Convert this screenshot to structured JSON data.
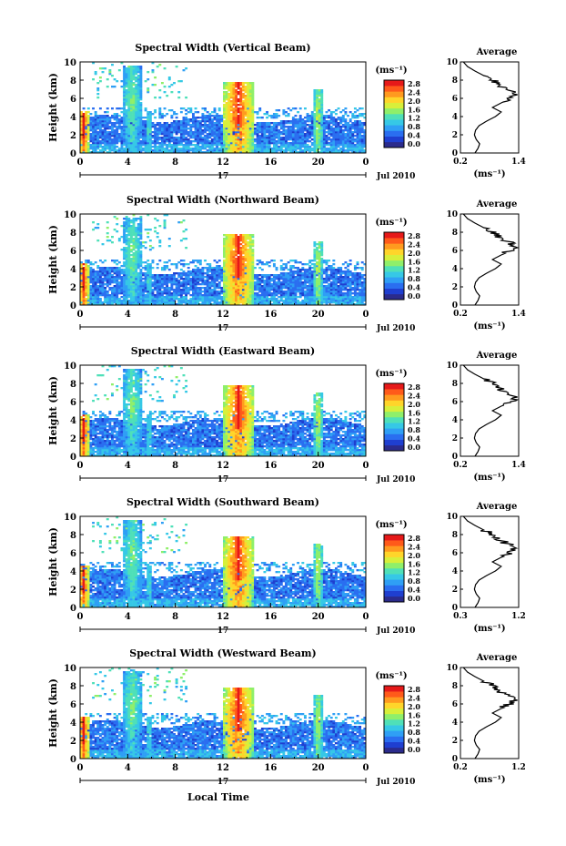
{
  "figure": {
    "xlabel": "Local Time",
    "ylabel": "Height (km)",
    "date_label": "Jul 2010",
    "day_label": "17",
    "colorbar_unit": "(ms⁻¹)",
    "average_title": "Average",
    "average_unit": "(ms⁻¹)"
  },
  "chart_data": [
    {
      "type": "heatmap",
      "title": "Spectral Width (Vertical Beam)",
      "xlabel": "Local Time",
      "ylabel": "Height (km)",
      "x_ticks": [
        "0",
        "4",
        "8",
        "12",
        "16",
        "20",
        "0"
      ],
      "y_ticks": [
        "0",
        "2",
        "4",
        "6",
        "8",
        "10"
      ],
      "xlim": [
        0,
        24
      ],
      "ylim": [
        0,
        10
      ],
      "colorbar": {
        "unit": "(ms⁻¹)",
        "ticks": [
          "0.0",
          "0.4",
          "0.8",
          "1.2",
          "1.6",
          "2.0",
          "2.4",
          "2.8"
        ],
        "range": [
          0,
          2.8
        ]
      },
      "profile": {
        "title": "Average",
        "xlabel": "(ms⁻¹)",
        "x_ticks": [
          "0.2",
          "1.4"
        ],
        "xlim": [
          0.2,
          1.4
        ],
        "y_ticks": [
          "0",
          "2",
          "4",
          "6",
          "8",
          "10"
        ]
      },
      "date_label": "Jul 2010",
      "day_label": "17"
    },
    {
      "type": "heatmap",
      "title": "Spectral Width (Northward Beam)",
      "xlabel": "Local Time",
      "ylabel": "Height (km)",
      "x_ticks": [
        "0",
        "4",
        "8",
        "12",
        "16",
        "20",
        "0"
      ],
      "y_ticks": [
        "0",
        "2",
        "4",
        "6",
        "8",
        "10"
      ],
      "xlim": [
        0,
        24
      ],
      "ylim": [
        0,
        10
      ],
      "colorbar": {
        "unit": "(ms⁻¹)",
        "ticks": [
          "0.0",
          "0.4",
          "0.8",
          "1.2",
          "1.6",
          "2.0",
          "2.4",
          "2.8"
        ],
        "range": [
          0,
          2.8
        ]
      },
      "profile": {
        "title": "Average",
        "xlabel": "(ms⁻¹)",
        "x_ticks": [
          "0.2",
          "1.4"
        ],
        "xlim": [
          0.2,
          1.4
        ],
        "y_ticks": [
          "0",
          "2",
          "4",
          "6",
          "8",
          "10"
        ]
      },
      "date_label": "Jul 2010",
      "day_label": "17"
    },
    {
      "type": "heatmap",
      "title": "Spectral Width (Eastward Beam)",
      "xlabel": "Local Time",
      "ylabel": "Height (km)",
      "x_ticks": [
        "0",
        "4",
        "8",
        "12",
        "16",
        "20",
        "0"
      ],
      "y_ticks": [
        "0",
        "2",
        "4",
        "6",
        "8",
        "10"
      ],
      "xlim": [
        0,
        24
      ],
      "ylim": [
        0,
        10
      ],
      "colorbar": {
        "unit": "(ms⁻¹)",
        "ticks": [
          "0.0",
          "0.4",
          "0.8",
          "1.2",
          "1.6",
          "2.0",
          "2.4",
          "2.8"
        ],
        "range": [
          0,
          2.8
        ]
      },
      "profile": {
        "title": "Average",
        "xlabel": "(ms⁻¹)",
        "x_ticks": [
          "0.2",
          "1.4"
        ],
        "xlim": [
          0.2,
          1.4
        ],
        "y_ticks": [
          "0",
          "2",
          "4",
          "6",
          "8",
          "10"
        ]
      },
      "date_label": "Jul 2010",
      "day_label": "17"
    },
    {
      "type": "heatmap",
      "title": "Spectral Width (Southward Beam)",
      "xlabel": "Local Time",
      "ylabel": "Height (km)",
      "x_ticks": [
        "0",
        "4",
        "8",
        "12",
        "16",
        "20",
        "0"
      ],
      "y_ticks": [
        "0",
        "2",
        "4",
        "6",
        "8",
        "10"
      ],
      "xlim": [
        0,
        24
      ],
      "ylim": [
        0,
        10
      ],
      "colorbar": {
        "unit": "(ms⁻¹)",
        "ticks": [
          "0.0",
          "0.4",
          "0.8",
          "1.2",
          "1.6",
          "2.0",
          "2.4",
          "2.8"
        ],
        "range": [
          0,
          2.8
        ]
      },
      "profile": {
        "title": "Average",
        "xlabel": "(ms⁻¹)",
        "x_ticks": [
          "0.3",
          "1.2"
        ],
        "xlim": [
          0.3,
          1.2
        ],
        "y_ticks": [
          "0",
          "2",
          "4",
          "6",
          "8",
          "10"
        ]
      },
      "date_label": "Jul 2010",
      "day_label": "17"
    },
    {
      "type": "heatmap",
      "title": "Spectral Width (Westward Beam)",
      "xlabel": "Local Time",
      "ylabel": "Height (km)",
      "x_ticks": [
        "0",
        "4",
        "8",
        "12",
        "16",
        "20",
        "0"
      ],
      "y_ticks": [
        "0",
        "2",
        "4",
        "6",
        "8",
        "10"
      ],
      "xlim": [
        0,
        24
      ],
      "ylim": [
        0,
        10
      ],
      "colorbar": {
        "unit": "(ms⁻¹)",
        "ticks": [
          "0.0",
          "0.4",
          "0.8",
          "1.2",
          "1.6",
          "2.0",
          "2.4",
          "2.8"
        ],
        "range": [
          0,
          2.8
        ]
      },
      "profile": {
        "title": "Average",
        "xlabel": "(ms⁻¹)",
        "x_ticks": [
          "0.2",
          "1.2"
        ],
        "xlim": [
          0.2,
          1.2
        ],
        "y_ticks": [
          "0",
          "2",
          "4",
          "6",
          "8",
          "10"
        ]
      },
      "date_label": "Jul 2010",
      "day_label": "17"
    }
  ],
  "colormap": [
    "#2b2b8c",
    "#1f3fd0",
    "#2a6ef0",
    "#2f9ff5",
    "#36c8e6",
    "#4fe0b8",
    "#8fef6a",
    "#d8ef3a",
    "#ffd52a",
    "#ff9a1f",
    "#ff5a1a",
    "#e61919"
  ],
  "profile_shape": [
    {
      "h": 0.0,
      "v": 0.25
    },
    {
      "h": 0.5,
      "v": 0.3
    },
    {
      "h": 1.0,
      "v": 0.33
    },
    {
      "h": 1.5,
      "v": 0.27
    },
    {
      "h": 2.0,
      "v": 0.24
    },
    {
      "h": 2.5,
      "v": 0.26
    },
    {
      "h": 3.0,
      "v": 0.32
    },
    {
      "h": 3.5,
      "v": 0.45
    },
    {
      "h": 4.0,
      "v": 0.6
    },
    {
      "h": 4.5,
      "v": 0.7
    },
    {
      "h": 5.0,
      "v": 0.55
    },
    {
      "h": 5.5,
      "v": 0.7
    },
    {
      "h": 6.0,
      "v": 0.85
    },
    {
      "h": 6.5,
      "v": 0.95
    },
    {
      "h": 7.0,
      "v": 0.8
    },
    {
      "h": 7.5,
      "v": 0.65
    },
    {
      "h": 8.0,
      "v": 0.55
    },
    {
      "h": 8.5,
      "v": 0.4
    },
    {
      "h": 9.0,
      "v": 0.25
    },
    {
      "h": 9.5,
      "v": 0.12
    },
    {
      "h": 10.0,
      "v": 0.05
    }
  ]
}
